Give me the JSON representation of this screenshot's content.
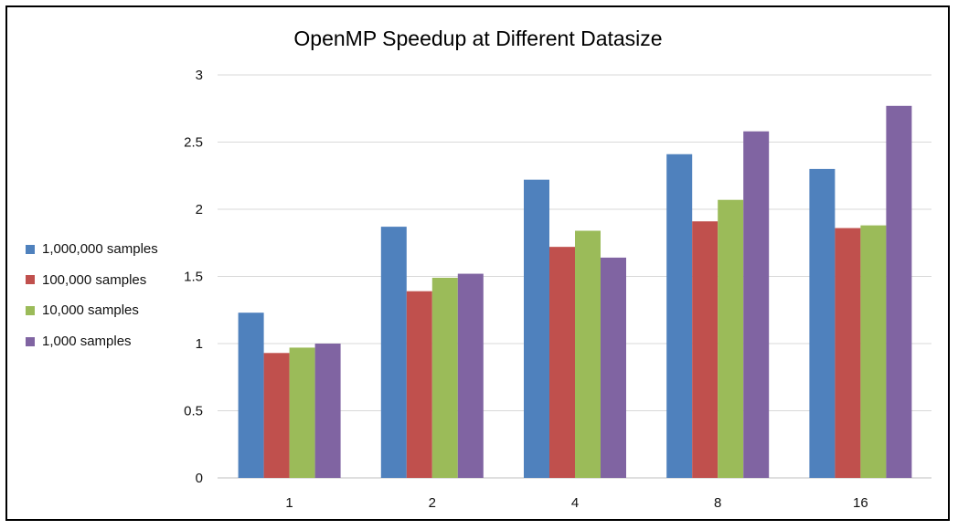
{
  "chart_data": {
    "type": "bar",
    "title": "OpenMP Speedup at Different Datasize",
    "xlabel": "",
    "ylabel": "",
    "categories": [
      "1",
      "2",
      "4",
      "8",
      "16"
    ],
    "ylim": [
      0,
      3
    ],
    "yticks": [
      0,
      0.5,
      1,
      1.5,
      2,
      2.5,
      3
    ],
    "ytick_labels": [
      "0",
      "0.5",
      "1",
      "1.5",
      "2",
      "2.5",
      "3"
    ],
    "grid": true,
    "legend_position": "left",
    "series": [
      {
        "name": "1,000,000 samples",
        "color": "#4F81BD",
        "values": [
          1.23,
          1.87,
          2.22,
          2.41,
          2.3
        ]
      },
      {
        "name": "100,000 samples",
        "color": "#C0504D",
        "values": [
          0.93,
          1.39,
          1.72,
          1.91,
          1.86
        ]
      },
      {
        "name": "10,000 samples",
        "color": "#9BBB59",
        "values": [
          0.97,
          1.49,
          1.84,
          2.07,
          1.88
        ]
      },
      {
        "name": "1,000 samples",
        "color": "#8064A2",
        "values": [
          1.0,
          1.52,
          1.64,
          2.58,
          2.77
        ]
      }
    ]
  }
}
